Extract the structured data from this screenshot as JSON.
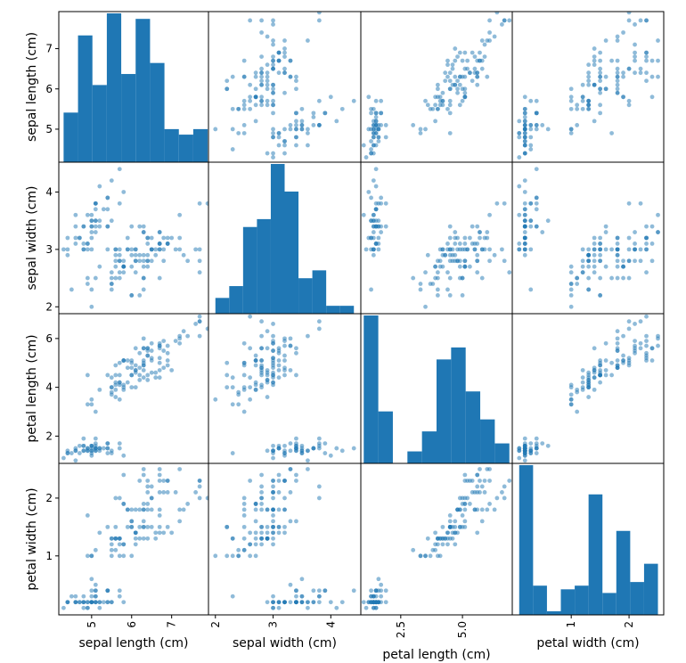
{
  "chart_data": {
    "type": "scatter-matrix",
    "variables": [
      "sepal length (cm)",
      "sepal width (cm)",
      "petal length (cm)",
      "petal width (cm)"
    ],
    "color": "#1f77b4",
    "grid": false,
    "diagonal": "histogram",
    "axis_ranges": [
      [
        4.18,
        7.92
      ],
      [
        1.88,
        4.52
      ],
      [
        0.882,
        7.018
      ],
      [
        -0.02,
        2.6
      ]
    ],
    "y_ticks": [
      {
        "values": [
          5,
          6,
          7
        ],
        "labels": [
          "5",
          "6",
          "7"
        ]
      },
      {
        "values": [
          2,
          3,
          4
        ],
        "labels": [
          "2",
          "3",
          "4"
        ]
      },
      {
        "values": [
          2,
          4,
          6
        ],
        "labels": [
          "2",
          "4",
          "6"
        ]
      },
      {
        "values": [
          1,
          2
        ],
        "labels": [
          "1",
          "2"
        ]
      }
    ],
    "x_ticks": [
      {
        "values": [
          5,
          6,
          7
        ],
        "labels": [
          "5",
          "6",
          "7"
        ]
      },
      {
        "values": [
          2,
          3,
          4
        ],
        "labels": [
          "2",
          "3",
          "4"
        ]
      },
      {
        "values": [
          2.5,
          5.0
        ],
        "labels": [
          "2.5",
          "5.0"
        ]
      },
      {
        "values": [
          1,
          2
        ],
        "labels": [
          "1",
          "2"
        ]
      }
    ],
    "histograms": [
      {
        "variable": "sepal length (cm)",
        "bin_edges": [
          4.3,
          4.66,
          5.02,
          5.38,
          5.74,
          6.1,
          6.46,
          6.82,
          7.18,
          7.54,
          7.9
        ],
        "counts": [
          9,
          23,
          14,
          27,
          16,
          26,
          18,
          6,
          5,
          6
        ]
      },
      {
        "variable": "sepal width (cm)",
        "bin_edges": [
          2.0,
          2.24,
          2.48,
          2.72,
          2.96,
          3.2,
          3.44,
          3.68,
          3.92,
          4.16,
          4.4
        ],
        "counts": [
          4,
          7,
          22,
          24,
          38,
          31,
          9,
          11,
          2,
          2
        ]
      },
      {
        "variable": "petal length (cm)",
        "bin_edges": [
          1.0,
          1.59,
          2.18,
          2.77,
          3.36,
          3.95,
          4.54,
          5.13,
          5.72,
          6.31,
          6.9
        ],
        "counts": [
          37,
          13,
          0,
          3,
          8,
          26,
          29,
          18,
          11,
          5
        ]
      },
      {
        "variable": "petal width (cm)",
        "bin_edges": [
          0.1,
          0.34,
          0.58,
          0.82,
          1.06,
          1.3,
          1.54,
          1.78,
          2.02,
          2.26,
          2.5
        ],
        "counts": [
          41,
          8,
          1,
          7,
          8,
          33,
          6,
          23,
          9,
          14
        ]
      }
    ],
    "points_columns": [
      "sepal length (cm)",
      "sepal width (cm)",
      "petal length (cm)",
      "petal width (cm)"
    ],
    "points": [
      [
        5.1,
        3.5,
        1.4,
        0.2
      ],
      [
        4.9,
        3.0,
        1.4,
        0.2
      ],
      [
        4.7,
        3.2,
        1.3,
        0.2
      ],
      [
        4.6,
        3.1,
        1.5,
        0.2
      ],
      [
        5.0,
        3.6,
        1.4,
        0.2
      ],
      [
        5.4,
        3.9,
        1.7,
        0.4
      ],
      [
        4.6,
        3.4,
        1.4,
        0.3
      ],
      [
        5.0,
        3.4,
        1.5,
        0.2
      ],
      [
        4.4,
        2.9,
        1.4,
        0.2
      ],
      [
        4.9,
        3.1,
        1.5,
        0.1
      ],
      [
        5.4,
        3.7,
        1.5,
        0.2
      ],
      [
        4.8,
        3.4,
        1.6,
        0.2
      ],
      [
        4.8,
        3.0,
        1.4,
        0.1
      ],
      [
        4.3,
        3.0,
        1.1,
        0.1
      ],
      [
        5.8,
        4.0,
        1.2,
        0.2
      ],
      [
        5.7,
        4.4,
        1.5,
        0.4
      ],
      [
        5.4,
        3.9,
        1.3,
        0.4
      ],
      [
        5.1,
        3.5,
        1.4,
        0.3
      ],
      [
        5.7,
        3.8,
        1.7,
        0.3
      ],
      [
        5.1,
        3.8,
        1.5,
        0.3
      ],
      [
        5.4,
        3.4,
        1.7,
        0.2
      ],
      [
        5.1,
        3.7,
        1.5,
        0.4
      ],
      [
        4.6,
        3.6,
        1.0,
        0.2
      ],
      [
        5.1,
        3.3,
        1.7,
        0.5
      ],
      [
        4.8,
        3.4,
        1.9,
        0.2
      ],
      [
        5.0,
        3.0,
        1.6,
        0.2
      ],
      [
        5.0,
        3.4,
        1.6,
        0.4
      ],
      [
        5.2,
        3.5,
        1.5,
        0.2
      ],
      [
        5.2,
        3.4,
        1.4,
        0.2
      ],
      [
        4.7,
        3.2,
        1.6,
        0.2
      ],
      [
        4.8,
        3.1,
        1.6,
        0.2
      ],
      [
        5.4,
        3.4,
        1.5,
        0.4
      ],
      [
        5.2,
        4.1,
        1.5,
        0.1
      ],
      [
        5.5,
        4.2,
        1.4,
        0.2
      ],
      [
        4.9,
        3.1,
        1.5,
        0.2
      ],
      [
        5.0,
        3.2,
        1.2,
        0.2
      ],
      [
        5.5,
        3.5,
        1.3,
        0.2
      ],
      [
        4.9,
        3.6,
        1.4,
        0.1
      ],
      [
        4.4,
        3.0,
        1.3,
        0.2
      ],
      [
        5.1,
        3.4,
        1.5,
        0.2
      ],
      [
        5.0,
        3.5,
        1.3,
        0.3
      ],
      [
        4.5,
        2.3,
        1.3,
        0.3
      ],
      [
        4.4,
        3.2,
        1.3,
        0.2
      ],
      [
        5.0,
        3.5,
        1.6,
        0.6
      ],
      [
        5.1,
        3.8,
        1.9,
        0.4
      ],
      [
        4.8,
        3.0,
        1.4,
        0.3
      ],
      [
        5.1,
        3.8,
        1.6,
        0.2
      ],
      [
        4.6,
        3.2,
        1.4,
        0.2
      ],
      [
        5.3,
        3.7,
        1.5,
        0.2
      ],
      [
        5.0,
        3.3,
        1.4,
        0.2
      ],
      [
        7.0,
        3.2,
        4.7,
        1.4
      ],
      [
        6.4,
        3.2,
        4.5,
        1.5
      ],
      [
        6.9,
        3.1,
        4.9,
        1.5
      ],
      [
        5.5,
        2.3,
        4.0,
        1.3
      ],
      [
        6.5,
        2.8,
        4.6,
        1.5
      ],
      [
        5.7,
        2.8,
        4.5,
        1.3
      ],
      [
        6.3,
        3.3,
        4.7,
        1.6
      ],
      [
        4.9,
        2.4,
        3.3,
        1.0
      ],
      [
        6.6,
        2.9,
        4.6,
        1.3
      ],
      [
        5.2,
        2.7,
        3.9,
        1.4
      ],
      [
        5.0,
        2.0,
        3.5,
        1.0
      ],
      [
        5.9,
        3.0,
        4.2,
        1.5
      ],
      [
        6.0,
        2.2,
        4.0,
        1.0
      ],
      [
        6.1,
        2.9,
        4.7,
        1.4
      ],
      [
        5.6,
        2.9,
        3.6,
        1.3
      ],
      [
        6.7,
        3.1,
        4.4,
        1.4
      ],
      [
        5.6,
        3.0,
        4.5,
        1.5
      ],
      [
        5.8,
        2.7,
        4.1,
        1.0
      ],
      [
        6.2,
        2.2,
        4.5,
        1.5
      ],
      [
        5.6,
        2.5,
        3.9,
        1.1
      ],
      [
        5.9,
        3.2,
        4.8,
        1.8
      ],
      [
        6.1,
        2.8,
        4.0,
        1.3
      ],
      [
        6.3,
        2.5,
        4.9,
        1.5
      ],
      [
        6.1,
        2.8,
        4.7,
        1.2
      ],
      [
        6.4,
        2.9,
        4.3,
        1.3
      ],
      [
        6.6,
        3.0,
        4.4,
        1.4
      ],
      [
        6.8,
        2.8,
        4.8,
        1.4
      ],
      [
        6.7,
        3.0,
        5.0,
        1.7
      ],
      [
        6.0,
        2.9,
        4.5,
        1.5
      ],
      [
        5.7,
        2.6,
        3.5,
        1.0
      ],
      [
        5.5,
        2.4,
        3.8,
        1.1
      ],
      [
        5.5,
        2.4,
        3.7,
        1.0
      ],
      [
        5.8,
        2.7,
        3.9,
        1.2
      ],
      [
        6.0,
        2.7,
        5.1,
        1.6
      ],
      [
        5.4,
        3.0,
        4.5,
        1.5
      ],
      [
        6.0,
        3.4,
        4.5,
        1.6
      ],
      [
        6.7,
        3.1,
        4.7,
        1.5
      ],
      [
        6.3,
        2.3,
        4.4,
        1.3
      ],
      [
        5.6,
        3.0,
        4.1,
        1.3
      ],
      [
        5.5,
        2.5,
        4.0,
        1.3
      ],
      [
        5.5,
        2.6,
        4.4,
        1.2
      ],
      [
        6.1,
        3.0,
        4.6,
        1.4
      ],
      [
        5.8,
        2.6,
        4.0,
        1.2
      ],
      [
        5.0,
        2.3,
        3.3,
        1.0
      ],
      [
        5.6,
        2.7,
        4.2,
        1.3
      ],
      [
        5.7,
        3.0,
        4.2,
        1.2
      ],
      [
        5.7,
        2.9,
        4.2,
        1.3
      ],
      [
        6.2,
        2.9,
        4.3,
        1.3
      ],
      [
        5.1,
        2.5,
        3.0,
        1.1
      ],
      [
        5.7,
        2.8,
        4.1,
        1.3
      ],
      [
        6.3,
        3.3,
        6.0,
        2.5
      ],
      [
        5.8,
        2.7,
        5.1,
        1.9
      ],
      [
        7.1,
        3.0,
        5.9,
        2.1
      ],
      [
        6.3,
        2.9,
        5.6,
        1.8
      ],
      [
        6.5,
        3.0,
        5.8,
        2.2
      ],
      [
        7.6,
        3.0,
        6.6,
        2.1
      ],
      [
        4.9,
        2.5,
        4.5,
        1.7
      ],
      [
        7.3,
        2.9,
        6.3,
        1.8
      ],
      [
        6.7,
        2.5,
        5.8,
        1.8
      ],
      [
        7.2,
        3.6,
        6.1,
        2.5
      ],
      [
        6.5,
        3.2,
        5.1,
        2.0
      ],
      [
        6.4,
        2.7,
        5.3,
        1.9
      ],
      [
        6.8,
        3.0,
        5.5,
        2.1
      ],
      [
        5.7,
        2.5,
        5.0,
        2.0
      ],
      [
        5.8,
        2.8,
        5.1,
        2.4
      ],
      [
        6.4,
        3.2,
        5.3,
        2.3
      ],
      [
        6.5,
        3.0,
        5.5,
        1.8
      ],
      [
        7.7,
        3.8,
        6.7,
        2.2
      ],
      [
        7.7,
        2.6,
        6.9,
        2.3
      ],
      [
        6.0,
        2.2,
        5.0,
        1.5
      ],
      [
        6.9,
        3.2,
        5.7,
        2.3
      ],
      [
        5.6,
        2.8,
        4.9,
        2.0
      ],
      [
        7.7,
        2.8,
        6.7,
        2.0
      ],
      [
        6.3,
        2.7,
        4.9,
        1.8
      ],
      [
        6.7,
        3.3,
        5.7,
        2.1
      ],
      [
        7.2,
        3.2,
        6.0,
        1.8
      ],
      [
        6.2,
        2.8,
        4.8,
        1.8
      ],
      [
        6.1,
        3.0,
        4.9,
        1.8
      ],
      [
        6.4,
        2.8,
        5.6,
        2.1
      ],
      [
        7.2,
        3.0,
        5.8,
        1.6
      ],
      [
        7.4,
        2.8,
        6.1,
        1.9
      ],
      [
        7.9,
        3.8,
        6.4,
        2.0
      ],
      [
        6.4,
        2.8,
        5.6,
        2.2
      ],
      [
        6.3,
        2.8,
        5.1,
        1.5
      ],
      [
        6.1,
        2.6,
        5.6,
        1.4
      ],
      [
        7.7,
        3.0,
        6.1,
        2.3
      ],
      [
        6.3,
        3.4,
        5.6,
        2.4
      ],
      [
        6.4,
        3.1,
        5.5,
        1.8
      ],
      [
        6.0,
        3.0,
        4.8,
        1.8
      ],
      [
        6.9,
        3.1,
        5.4,
        2.1
      ],
      [
        6.7,
        3.1,
        5.6,
        2.4
      ],
      [
        6.9,
        3.1,
        5.1,
        2.3
      ],
      [
        5.8,
        2.7,
        5.1,
        1.9
      ],
      [
        6.8,
        3.2,
        5.9,
        2.3
      ],
      [
        6.7,
        3.3,
        5.7,
        2.5
      ],
      [
        6.7,
        3.0,
        5.2,
        2.3
      ],
      [
        6.3,
        2.5,
        5.0,
        1.9
      ],
      [
        6.5,
        3.0,
        5.2,
        2.0
      ],
      [
        6.2,
        3.4,
        5.4,
        2.3
      ],
      [
        5.9,
        3.0,
        5.1,
        1.8
      ]
    ]
  }
}
